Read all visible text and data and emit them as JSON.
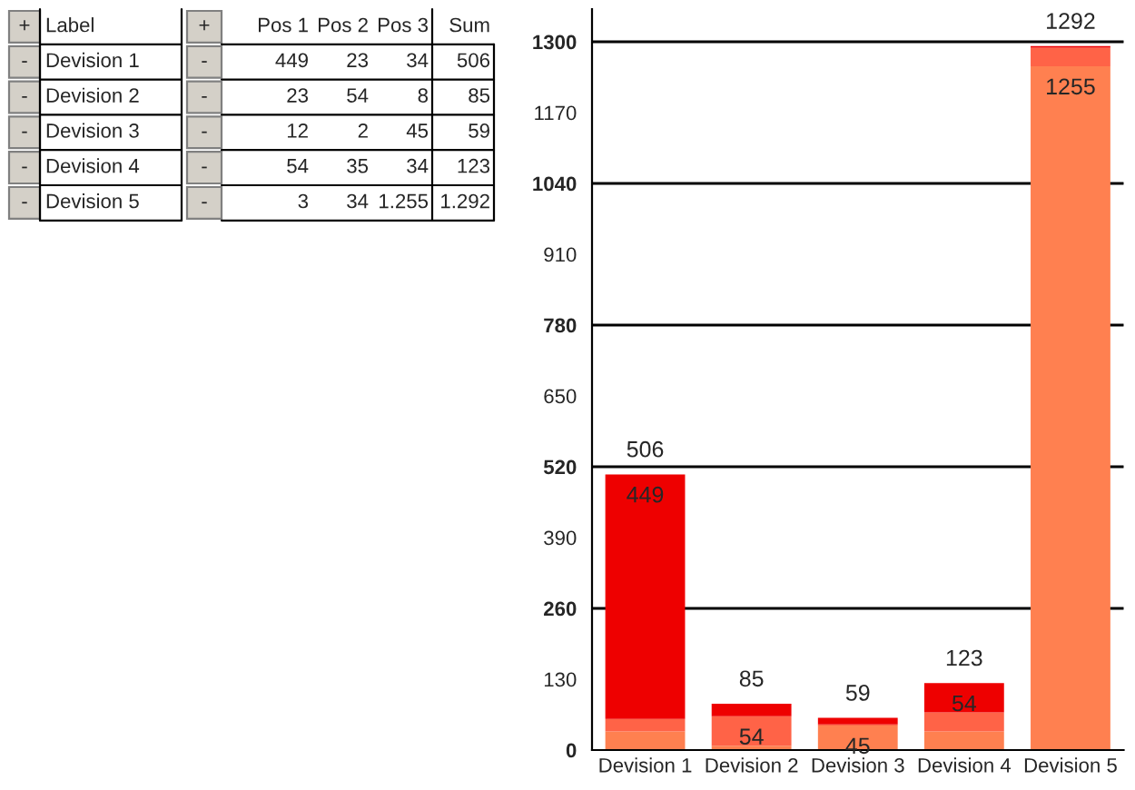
{
  "chart_data": [
    {
      "type": "other",
      "annotations": [
        "+",
        "Label",
        "+",
        "Pos 1",
        "Pos 2",
        "Pos 3",
        "Sum",
        "-",
        "Devision 1",
        "-",
        "449",
        "23",
        "34",
        "506",
        "-",
        "Devision 2",
        "-",
        "23",
        "54",
        "8",
        "85",
        "-",
        "Devision 3",
        "-",
        "12",
        "2",
        "45",
        "59",
        "-",
        "Devision 4",
        "-",
        "54",
        "35",
        "34",
        "123",
        "-",
        "Devision 5",
        "-",
        "3",
        "34",
        "1.255",
        "1.292"
      ]
    },
    {
      "type": "bar",
      "stacked": true,
      "categories": [
        "Devision 1",
        "Devision 2",
        "Devision 3",
        "Devision 4",
        "Devision 5"
      ],
      "series": [
        {
          "color": "#ff8050",
          "values": [
            34,
            8,
            45,
            34,
            1255
          ],
          "value_labels": [
            null,
            null,
            "45",
            null,
            "1255"
          ]
        },
        {
          "color": "#ff6347",
          "values": [
            23,
            54,
            2,
            35,
            34
          ],
          "value_labels": [
            null,
            "54",
            null,
            null,
            null
          ]
        },
        {
          "color": "#ee0000",
          "values": [
            449,
            23,
            12,
            54,
            3
          ],
          "value_labels": [
            "449",
            null,
            null,
            "54",
            null
          ]
        }
      ],
      "totals": [
        "506",
        "85",
        "59",
        "123",
        "1292"
      ],
      "ylim": [
        0,
        1360
      ],
      "yticks": [
        0,
        130,
        260,
        390,
        520,
        650,
        780,
        910,
        1040,
        1170,
        1300
      ],
      "ref_lines": [
        {
          "axis": "y",
          "value": 260
        },
        {
          "axis": "y",
          "value": 520
        },
        {
          "axis": "y",
          "value": 780
        },
        {
          "axis": "y",
          "value": 1040
        },
        {
          "axis": "y",
          "value": 1300
        }
      ]
    }
  ]
}
